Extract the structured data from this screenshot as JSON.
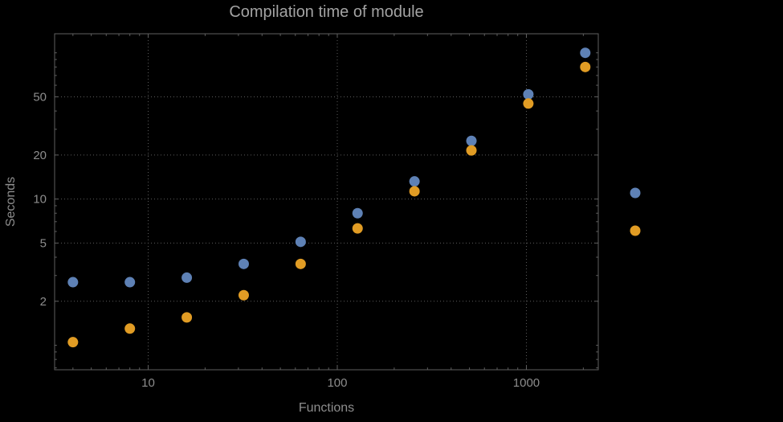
{
  "chart_data": {
    "type": "scatter",
    "title": "Compilation time of module",
    "xlabel": "Functions",
    "ylabel": "Seconds",
    "x_scale": "log",
    "y_scale": "log",
    "xlim": [
      3.2,
      2400
    ],
    "ylim": [
      0.68,
      135
    ],
    "x_ticks": [
      10,
      100,
      1000
    ],
    "y_ticks": [
      2,
      5,
      10,
      20,
      50
    ],
    "grid": "dotted lines at labeled ticks only",
    "legend_position": "right-outside, markers only (no visible label text)",
    "background": "#000000",
    "frame_color": "#606060",
    "grid_color": "#5c5c5c",
    "text_color": "#8d8d8d",
    "x": [
      4,
      8,
      16,
      32,
      64,
      128,
      256,
      512,
      1024,
      2048
    ],
    "series": [
      {
        "name": "blue",
        "color": "#5e81b5",
        "values": [
          2.7,
          2.7,
          2.9,
          3.6,
          5.1,
          8.0,
          13.2,
          25,
          52,
          100
        ]
      },
      {
        "name": "orange",
        "color": "#e19c24",
        "values": [
          1.05,
          1.3,
          1.55,
          2.2,
          3.6,
          6.3,
          11.3,
          21.5,
          45,
          80
        ]
      }
    ]
  }
}
